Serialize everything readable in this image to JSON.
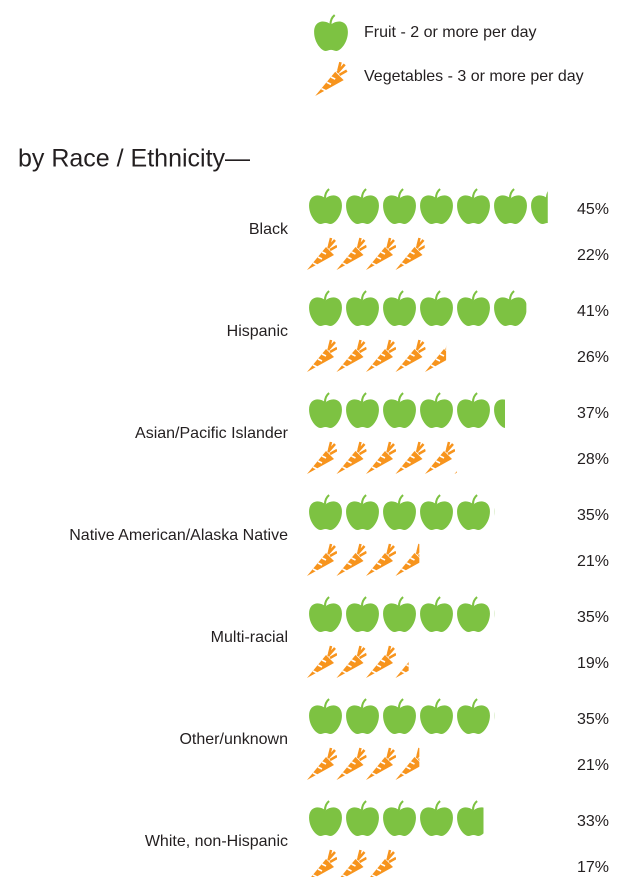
{
  "chart_data": {
    "type": "pictograph",
    "title": "by Race / Ethnicity—",
    "categories": [
      "Black",
      "Hispanic",
      "Asian/Pacific Islander",
      "Native American/Alaska Native",
      "Multi-racial",
      "Other/unknown",
      "White, non-Hispanic"
    ],
    "series": [
      {
        "name": "Fruit - 2 or more per day",
        "color": "#7dc242",
        "values": [
          45,
          41,
          37,
          35,
          35,
          35,
          33
        ],
        "value_labels": [
          "45%",
          "41%",
          "37%",
          "35%",
          "35%",
          "35%",
          "33%"
        ]
      },
      {
        "name": "Vegetables - 3 or more per day",
        "color": "#f7941d",
        "values": [
          22,
          26,
          28,
          21,
          19,
          21,
          17
        ],
        "value_labels": [
          "22%",
          "26%",
          "28%",
          "21%",
          "19%",
          "21%",
          "17%"
        ]
      }
    ]
  }
}
